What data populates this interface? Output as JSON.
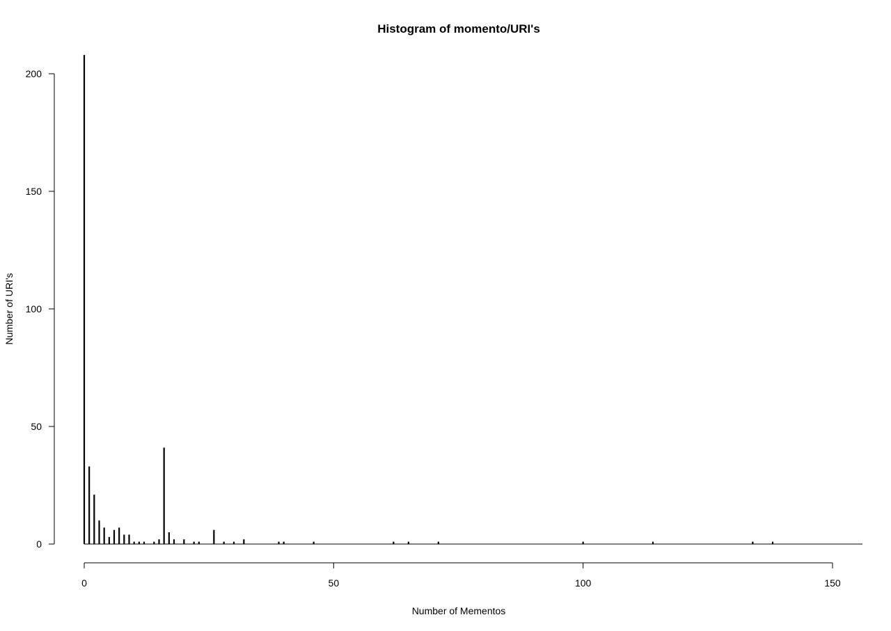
{
  "chart_data": {
    "type": "bar",
    "title": "Histogram of momento/URI's",
    "xlabel": "Number of Mementos",
    "ylabel": "Number of URI's",
    "xlim": [
      0,
      155
    ],
    "ylim": [
      0,
      208
    ],
    "xticks": [
      0,
      50,
      100,
      150
    ],
    "yticks": [
      0,
      50,
      100,
      150,
      200
    ],
    "grid": false,
    "legend": "none",
    "bar_color": "#000000",
    "x": [
      0,
      1,
      2,
      3,
      4,
      5,
      6,
      7,
      8,
      9,
      10,
      11,
      12,
      14,
      15,
      16,
      17,
      18,
      20,
      22,
      23,
      26,
      28,
      30,
      32,
      39,
      40,
      46,
      62,
      65,
      71,
      100,
      114,
      134,
      138
    ],
    "values": [
      208,
      33,
      21,
      10,
      7,
      3,
      6,
      7,
      4,
      4,
      1,
      1,
      1,
      1,
      2,
      41,
      5,
      2,
      2,
      1,
      1,
      6,
      1,
      1,
      2,
      1,
      1,
      1,
      1,
      1,
      1,
      1,
      1,
      1,
      1
    ]
  }
}
